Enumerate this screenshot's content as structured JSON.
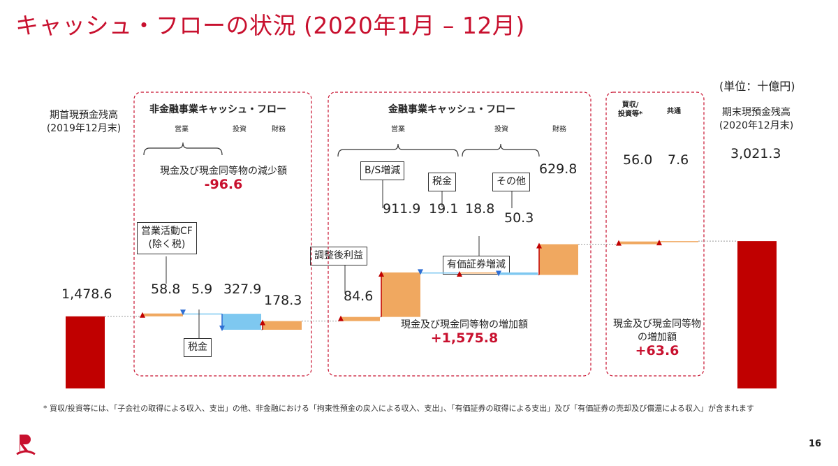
{
  "title": "キャッシュ・フローの状況 (2020年1月 – 12月)",
  "unit": "(単位：十億円)",
  "start": {
    "label": "期首現預金残高",
    "sublabel": "(2019年12月末)",
    "value_label": "1,478.6"
  },
  "end": {
    "label": "期末現預金残高",
    "sublabel": "(2020年12月末)",
    "value_label": "3,021.3"
  },
  "non_financial": {
    "title": "非金融事業キャッシュ・フロー",
    "cols": {
      "operating": "営業",
      "investing": "投資",
      "financing": "財務"
    },
    "summary_label": "現金及び現金同等物の減少額",
    "summary_value": "-96.6",
    "callouts": {
      "op_cf": "営業活動CF\n(除く税)",
      "tax": "税金"
    }
  },
  "financial": {
    "title": "金融事業キャッシュ・フロー",
    "cols": {
      "operating": "営業",
      "investing": "投資",
      "financing": "財務"
    },
    "summary_label": "現金及び現金同等物の増加額",
    "summary_value": "+1,575.8",
    "callouts": {
      "adj": "調整後利益",
      "bs": "B/S増減",
      "tax": "税金",
      "other": "その他",
      "securities": "有価証券増減"
    }
  },
  "other": {
    "cols": {
      "acq": "買収/\n投資等*",
      "common": "共通"
    },
    "summary_label": "現金及び現金同等物\nの増加額",
    "summary_value": "+63.6"
  },
  "footnote": "* 買収/投資等には、「子会社の取得による収入、支出」の他、非金融における「拘束性預金の戻入による収入、支出」、「有価証券の取得による支出」及び「有価証券の売却及び償還による収入」が含まれます",
  "page_number": "16",
  "colors": {
    "start_end": "#c00000",
    "increase": "#f0a860",
    "decrease": "#7ec8f0",
    "accent": "#c8102e",
    "dashed_box": "#c8102e"
  },
  "chart_data": {
    "type": "waterfall",
    "unit": "十億円",
    "start": 1478.6,
    "end": 3021.3,
    "steps": [
      {
        "group": "非金融",
        "category": "営業",
        "name": "営業活動CF(除く税)",
        "value": 58.8,
        "label": "58.8"
      },
      {
        "group": "非金融",
        "category": "営業",
        "name": "税金",
        "value": -5.9,
        "label": "5.9"
      },
      {
        "group": "非金融",
        "category": "投資",
        "name": "",
        "value": -327.9,
        "label": "327.9"
      },
      {
        "group": "非金融",
        "category": "財務",
        "name": "",
        "value": 178.3,
        "label": "178.3"
      },
      {
        "group": "金融",
        "category": "営業",
        "name": "調整後利益",
        "value": 84.6,
        "label": "84.6"
      },
      {
        "group": "金融",
        "category": "営業",
        "name": "B/S増減",
        "value": 911.9,
        "label": "911.9"
      },
      {
        "group": "金融",
        "category": "営業",
        "name": "税金",
        "value": -19.1,
        "label": "19.1"
      },
      {
        "group": "金融",
        "category": "投資",
        "name": "有価証券増減",
        "value": 18.8,
        "label": "18.8"
      },
      {
        "group": "金融",
        "category": "投資",
        "name": "その他",
        "value": -50.3,
        "label": "50.3"
      },
      {
        "group": "金融",
        "category": "財務",
        "name": "",
        "value": 629.8,
        "label": "629.8"
      },
      {
        "group": "その他",
        "category": "買収/投資等*",
        "name": "",
        "value": 56.0,
        "label": "56.0"
      },
      {
        "group": "その他",
        "category": "共通",
        "name": "",
        "value": 7.6,
        "label": "7.6"
      }
    ]
  }
}
